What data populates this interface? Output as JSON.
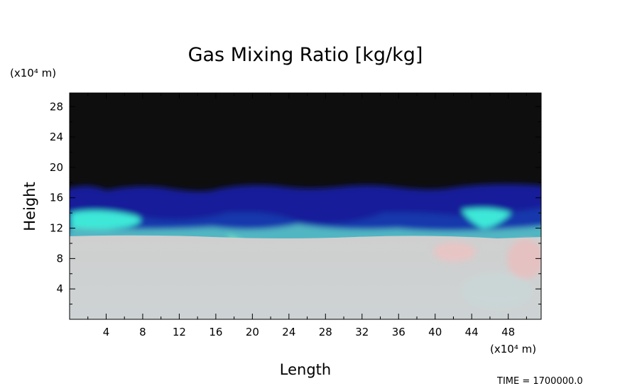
{
  "chart_data": {
    "type": "field",
    "title": "Gas Mixing Ratio [kg/kg]",
    "x_label": "Length",
    "y_label": "Height",
    "x_unit": "(x10⁴ m)",
    "y_unit": "(x10⁴ m)",
    "time_label": "TIME  =  1700000.0",
    "xlim": [
      0,
      51.6
    ],
    "ylim": [
      0,
      29.8
    ],
    "xticks": [
      4,
      8,
      12,
      16,
      20,
      24,
      28,
      32,
      36,
      40,
      44,
      48
    ],
    "yticks": [
      4,
      8,
      12,
      16,
      20,
      24,
      28
    ],
    "xminorticks": [
      2,
      6,
      10,
      14,
      18,
      22,
      26,
      30,
      34,
      38,
      42,
      46,
      50
    ],
    "yminorticks": [
      2,
      6,
      10,
      14,
      18,
      22,
      26
    ]
  }
}
